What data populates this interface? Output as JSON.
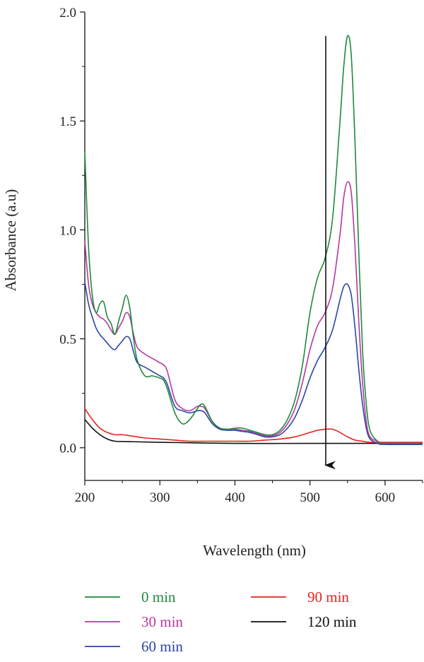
{
  "chart_data": {
    "type": "line",
    "title": "",
    "xlabel": "Wavelength (nm)",
    "ylabel": "Absorbance (a.u)",
    "xlim": [
      200,
      650
    ],
    "ylim": [
      -0.15,
      2.0
    ],
    "xticks": [
      200,
      300,
      400,
      500,
      600
    ],
    "xtick_labels": [
      "200",
      "300",
      "400",
      "500",
      "600"
    ],
    "yticks": [
      0.0,
      0.5,
      1.0,
      1.5,
      2.0
    ],
    "ytick_labels": [
      "0.0",
      "0.5",
      "1.0",
      "1.5",
      "2.0"
    ],
    "grid": false,
    "legend_position": "bottom",
    "annotations": [
      {
        "type": "arrow",
        "description": "downward arrow indicating decreasing absorbance",
        "x": 521,
        "y_start": 1.89,
        "y_end": -0.08
      }
    ],
    "series": [
      {
        "name": "0 min",
        "color": "#1e8a3c",
        "x": [
          200,
          205,
          210,
          215,
          220,
          225,
          230,
          235,
          240,
          245,
          250,
          255,
          260,
          265,
          270,
          280,
          290,
          300,
          305,
          310,
          320,
          330,
          340,
          350,
          355,
          360,
          370,
          380,
          390,
          400,
          410,
          420,
          430,
          440,
          450,
          460,
          470,
          480,
          490,
          500,
          510,
          520,
          530,
          540,
          545,
          550,
          555,
          560,
          565,
          570,
          575,
          580,
          590,
          600,
          650
        ],
        "y": [
          1.36,
          0.92,
          0.7,
          0.62,
          0.66,
          0.67,
          0.6,
          0.57,
          0.52,
          0.58,
          0.64,
          0.7,
          0.64,
          0.5,
          0.4,
          0.33,
          0.33,
          0.32,
          0.31,
          0.27,
          0.16,
          0.11,
          0.13,
          0.18,
          0.2,
          0.19,
          0.12,
          0.09,
          0.085,
          0.09,
          0.09,
          0.08,
          0.07,
          0.06,
          0.06,
          0.08,
          0.13,
          0.22,
          0.38,
          0.62,
          0.78,
          0.87,
          1.05,
          1.5,
          1.75,
          1.89,
          1.8,
          1.4,
          0.9,
          0.45,
          0.2,
          0.08,
          0.03,
          0.02,
          0.02
        ]
      },
      {
        "name": "30 min",
        "color": "#b5389f",
        "x": [
          200,
          205,
          210,
          215,
          220,
          225,
          230,
          235,
          240,
          245,
          250,
          255,
          260,
          265,
          270,
          280,
          290,
          300,
          305,
          310,
          320,
          330,
          340,
          350,
          355,
          360,
          370,
          380,
          390,
          400,
          410,
          420,
          430,
          440,
          450,
          460,
          470,
          480,
          490,
          500,
          510,
          520,
          530,
          540,
          545,
          550,
          555,
          560,
          565,
          570,
          575,
          580,
          590,
          600,
          650
        ],
        "y": [
          0.95,
          0.75,
          0.66,
          0.62,
          0.6,
          0.59,
          0.57,
          0.54,
          0.52,
          0.55,
          0.58,
          0.62,
          0.6,
          0.52,
          0.46,
          0.43,
          0.41,
          0.39,
          0.38,
          0.35,
          0.22,
          0.18,
          0.17,
          0.19,
          0.19,
          0.18,
          0.12,
          0.09,
          0.085,
          0.085,
          0.08,
          0.075,
          0.065,
          0.055,
          0.055,
          0.07,
          0.11,
          0.18,
          0.3,
          0.45,
          0.56,
          0.62,
          0.73,
          0.98,
          1.15,
          1.22,
          1.17,
          0.92,
          0.58,
          0.3,
          0.12,
          0.05,
          0.03,
          0.02,
          0.02
        ]
      },
      {
        "name": "60 min",
        "color": "#2b45a6",
        "x": [
          200,
          205,
          210,
          215,
          220,
          225,
          230,
          235,
          240,
          245,
          250,
          255,
          260,
          265,
          270,
          280,
          290,
          300,
          305,
          310,
          320,
          330,
          340,
          350,
          355,
          360,
          370,
          380,
          390,
          400,
          410,
          420,
          430,
          440,
          450,
          460,
          470,
          480,
          490,
          500,
          510,
          520,
          530,
          540,
          545,
          550,
          555,
          560,
          565,
          570,
          575,
          580,
          590,
          600,
          650
        ],
        "y": [
          0.76,
          0.66,
          0.6,
          0.55,
          0.52,
          0.5,
          0.48,
          0.46,
          0.45,
          0.47,
          0.49,
          0.51,
          0.5,
          0.44,
          0.39,
          0.37,
          0.35,
          0.33,
          0.32,
          0.29,
          0.19,
          0.17,
          0.16,
          0.17,
          0.17,
          0.16,
          0.11,
          0.085,
          0.08,
          0.08,
          0.075,
          0.07,
          0.06,
          0.05,
          0.05,
          0.06,
          0.09,
          0.14,
          0.22,
          0.32,
          0.4,
          0.46,
          0.54,
          0.68,
          0.74,
          0.75,
          0.7,
          0.55,
          0.36,
          0.2,
          0.09,
          0.04,
          0.02,
          0.015,
          0.015
        ]
      },
      {
        "name": "90 min",
        "color": "#e8231f",
        "x": [
          200,
          210,
          220,
          230,
          240,
          250,
          260,
          270,
          280,
          300,
          320,
          340,
          360,
          380,
          400,
          420,
          440,
          460,
          480,
          500,
          510,
          520,
          530,
          540,
          550,
          560,
          570,
          580,
          600,
          650
        ],
        "y": [
          0.18,
          0.13,
          0.09,
          0.07,
          0.06,
          0.06,
          0.055,
          0.05,
          0.045,
          0.04,
          0.035,
          0.03,
          0.03,
          0.03,
          0.03,
          0.03,
          0.035,
          0.04,
          0.05,
          0.07,
          0.08,
          0.085,
          0.085,
          0.07,
          0.05,
          0.035,
          0.03,
          0.025,
          0.025,
          0.025
        ]
      },
      {
        "name": "120 min",
        "color": "#111111",
        "x": [
          200,
          210,
          220,
          230,
          240,
          260,
          300,
          400,
          500,
          600,
          650
        ],
        "y": [
          0.13,
          0.09,
          0.06,
          0.04,
          0.03,
          0.028,
          0.025,
          0.02,
          0.02,
          0.02,
          0.02
        ]
      }
    ]
  }
}
